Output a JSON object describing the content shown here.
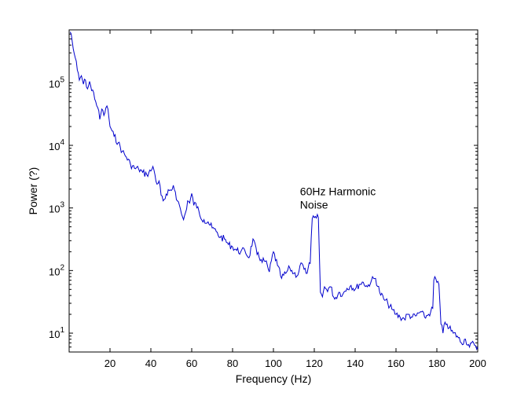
{
  "chart_data": {
    "type": "line",
    "title": "",
    "xlabel": "Frequency (Hz)",
    "ylabel": "Power (?)",
    "xlim": [
      0,
      200
    ],
    "ylim": [
      5,
      700000
    ],
    "yscale": "log",
    "grid": false,
    "line_color": "#0000cc",
    "xticks": [
      {
        "value": 20,
        "label": "20"
      },
      {
        "value": 40,
        "label": "40"
      },
      {
        "value": 60,
        "label": "60"
      },
      {
        "value": 80,
        "label": "80"
      },
      {
        "value": 100,
        "label": "100"
      },
      {
        "value": 120,
        "label": "120"
      },
      {
        "value": 140,
        "label": "140"
      },
      {
        "value": 160,
        "label": "160"
      },
      {
        "value": 180,
        "label": "180"
      },
      {
        "value": 200,
        "label": "200"
      }
    ],
    "yticks": [
      {
        "value": 10,
        "base": "10",
        "exp": "1"
      },
      {
        "value": 100,
        "base": "10",
        "exp": "2"
      },
      {
        "value": 1000,
        "base": "10",
        "exp": "3"
      },
      {
        "value": 10000,
        "base": "10",
        "exp": "4"
      },
      {
        "value": 100000,
        "base": "10",
        "exp": "5"
      }
    ],
    "annotation": {
      "lines": [
        "60Hz Harmonic",
        "Noise"
      ],
      "x": 113,
      "y": 1600
    },
    "series": [
      {
        "x": [
          0.5,
          1,
          2,
          3,
          4,
          5,
          6,
          7,
          8,
          9,
          10,
          11,
          12,
          13,
          14,
          15,
          16,
          17,
          18,
          19,
          20,
          21,
          22,
          24,
          26,
          28,
          30,
          32,
          34,
          36,
          38,
          40,
          41,
          42,
          43,
          44,
          45,
          46,
          47,
          48,
          49,
          50,
          51,
          52,
          53,
          54,
          55,
          56,
          57,
          58,
          59,
          60,
          61,
          62,
          64,
          66,
          68,
          70,
          72,
          74,
          76,
          78,
          80,
          82,
          84,
          86,
          88,
          90,
          92,
          94,
          96,
          98,
          100,
          102,
          104,
          106,
          108,
          110,
          112,
          113,
          114,
          115,
          116,
          117,
          118,
          119,
          120,
          121,
          122,
          123,
          124,
          125,
          126,
          128,
          130,
          132,
          134,
          136,
          138,
          140,
          142,
          144,
          146,
          148,
          150,
          152,
          154,
          156,
          158,
          160,
          162,
          164,
          166,
          168,
          170,
          172,
          174,
          176,
          177,
          178,
          178.5,
          179,
          180,
          181,
          182,
          183,
          184,
          185,
          186,
          188,
          190,
          192,
          194,
          196,
          198,
          200
        ],
        "y": [
          650000,
          600000,
          350000,
          250000,
          160000,
          110000,
          130000,
          95000,
          110000,
          80000,
          105000,
          75000,
          70000,
          50000,
          40000,
          26000,
          38000,
          30000,
          40000,
          38000,
          20000,
          17000,
          14000,
          11000,
          8000,
          6500,
          5000,
          4300,
          4200,
          3700,
          3400,
          3900,
          4600,
          3400,
          2400,
          2700,
          1600,
          1300,
          1400,
          1600,
          1900,
          1900,
          2300,
          1800,
          1300,
          1100,
          800,
          650,
          850,
          1300,
          1200,
          1700,
          1100,
          1200,
          750,
          650,
          600,
          480,
          420,
          340,
          320,
          260,
          240,
          210,
          200,
          210,
          160,
          320,
          180,
          150,
          140,
          95,
          200,
          120,
          75,
          90,
          110,
          90,
          85,
          120,
          130,
          105,
          90,
          110,
          130,
          680,
          700,
          690,
          700,
          45,
          38,
          55,
          50,
          55,
          35,
          45,
          42,
          52,
          58,
          50,
          60,
          65,
          55,
          70,
          75,
          45,
          35,
          30,
          24,
          20,
          18,
          17,
          20,
          18,
          19,
          22,
          18,
          20,
          22,
          25,
          70,
          80,
          65,
          60,
          14,
          10,
          15,
          14,
          12,
          10,
          9,
          7,
          8,
          6,
          7,
          6
        ]
      }
    ]
  }
}
